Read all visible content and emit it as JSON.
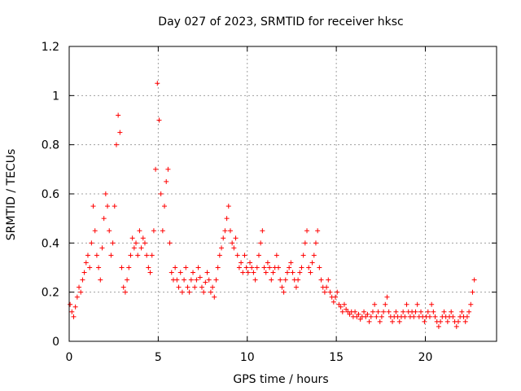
{
  "chart_data": {
    "type": "scatter",
    "title": "Day 027 of 2023, SRMTID for receiver hksc",
    "xlabel": "GPS time / hours",
    "ylabel": "SRMTID / TECUs",
    "xlim": [
      0,
      24
    ],
    "ylim": [
      0,
      1.2
    ],
    "xticks": [
      0,
      5,
      10,
      15,
      20
    ],
    "xtick_labels": [
      "0",
      "5",
      "10",
      "15",
      "20"
    ],
    "yticks": [
      0,
      0.2,
      0.4,
      0.6,
      0.8,
      1.0,
      1.2
    ],
    "ytick_labels": [
      "0",
      "0.2",
      "0.4",
      "0.6",
      "0.8",
      "1",
      "1.2"
    ],
    "grid": true,
    "marker": "+",
    "series": [
      {
        "name": "hksc",
        "color": "#ff0000",
        "x": [
          0.05,
          0.15,
          0.25,
          0.35,
          0.45,
          0.55,
          0.65,
          0.75,
          0.85,
          0.95,
          1.05,
          1.15,
          1.25,
          1.35,
          1.45,
          1.55,
          1.65,
          1.75,
          1.85,
          1.95,
          2.05,
          2.15,
          2.25,
          2.35,
          2.45,
          2.55,
          2.65,
          2.75,
          2.85,
          2.95,
          3.05,
          3.15,
          3.25,
          3.35,
          3.45,
          3.55,
          3.65,
          3.75,
          3.85,
          3.95,
          4.05,
          4.15,
          4.25,
          4.35,
          4.45,
          4.55,
          4.65,
          4.75,
          4.85,
          4.95,
          5.05,
          5.15,
          5.25,
          5.35,
          5.45,
          5.55,
          5.65,
          5.75,
          5.85,
          5.95,
          6.05,
          6.15,
          6.25,
          6.35,
          6.45,
          6.55,
          6.65,
          6.75,
          6.85,
          6.95,
          7.05,
          7.15,
          7.25,
          7.35,
          7.45,
          7.55,
          7.65,
          7.75,
          7.85,
          7.95,
          8.05,
          8.15,
          8.25,
          8.35,
          8.45,
          8.55,
          8.65,
          8.75,
          8.85,
          8.95,
          9.05,
          9.15,
          9.25,
          9.35,
          9.45,
          9.55,
          9.65,
          9.75,
          9.85,
          9.95,
          10.05,
          10.15,
          10.25,
          10.35,
          10.45,
          10.55,
          10.65,
          10.75,
          10.85,
          10.95,
          11.05,
          11.15,
          11.25,
          11.35,
          11.45,
          11.55,
          11.65,
          11.75,
          11.85,
          11.95,
          12.05,
          12.15,
          12.25,
          12.35,
          12.45,
          12.55,
          12.65,
          12.75,
          12.85,
          12.95,
          13.05,
          13.15,
          13.25,
          13.35,
          13.45,
          13.55,
          13.65,
          13.75,
          13.85,
          13.95,
          14.05,
          14.15,
          14.25,
          14.35,
          14.45,
          14.55,
          14.65,
          14.75,
          14.85,
          14.95,
          15.05,
          15.15,
          15.25,
          15.35,
          15.45,
          15.55,
          15.65,
          15.75,
          15.85,
          15.95,
          16.05,
          16.15,
          16.25,
          16.35,
          16.45,
          16.55,
          16.65,
          16.75,
          16.85,
          16.95,
          17.05,
          17.15,
          17.25,
          17.35,
          17.45,
          17.55,
          17.65,
          17.75,
          17.85,
          17.95,
          18.05,
          18.15,
          18.25,
          18.35,
          18.45,
          18.55,
          18.65,
          18.75,
          18.85,
          18.95,
          19.05,
          19.15,
          19.25,
          19.35,
          19.45,
          19.55,
          19.65,
          19.75,
          19.85,
          19.95,
          20.05,
          20.15,
          20.25,
          20.35,
          20.45,
          20.55,
          20.65,
          20.75,
          20.85,
          20.95,
          21.05,
          21.15,
          21.25,
          21.35,
          21.45,
          21.55,
          21.65,
          21.75,
          21.85,
          21.95,
          22.05,
          22.15,
          22.25,
          22.35,
          22.45,
          22.55,
          22.65,
          22.75
        ],
        "y": [
          0.15,
          0.12,
          0.1,
          0.14,
          0.18,
          0.22,
          0.2,
          0.25,
          0.28,
          0.32,
          0.35,
          0.3,
          0.4,
          0.55,
          0.45,
          0.35,
          0.3,
          0.25,
          0.38,
          0.5,
          0.6,
          0.55,
          0.45,
          0.35,
          0.4,
          0.55,
          0.8,
          0.92,
          0.85,
          0.3,
          0.22,
          0.2,
          0.25,
          0.3,
          0.35,
          0.42,
          0.38,
          0.4,
          0.35,
          0.45,
          0.38,
          0.42,
          0.4,
          0.35,
          0.3,
          0.28,
          0.35,
          0.45,
          0.7,
          1.05,
          0.9,
          0.6,
          0.45,
          0.55,
          0.65,
          0.7,
          0.4,
          0.28,
          0.25,
          0.3,
          0.25,
          0.22,
          0.28,
          0.2,
          0.25,
          0.3,
          0.22,
          0.2,
          0.25,
          0.28,
          0.22,
          0.25,
          0.3,
          0.26,
          0.22,
          0.2,
          0.24,
          0.28,
          0.25,
          0.2,
          0.22,
          0.18,
          0.25,
          0.3,
          0.35,
          0.38,
          0.42,
          0.45,
          0.5,
          0.55,
          0.45,
          0.4,
          0.38,
          0.42,
          0.35,
          0.3,
          0.32,
          0.28,
          0.35,
          0.3,
          0.28,
          0.32,
          0.3,
          0.28,
          0.25,
          0.3,
          0.35,
          0.4,
          0.45,
          0.3,
          0.28,
          0.32,
          0.3,
          0.25,
          0.28,
          0.3,
          0.35,
          0.3,
          0.25,
          0.22,
          0.2,
          0.25,
          0.28,
          0.3,
          0.32,
          0.28,
          0.25,
          0.22,
          0.25,
          0.28,
          0.3,
          0.35,
          0.4,
          0.45,
          0.3,
          0.28,
          0.32,
          0.35,
          0.4,
          0.45,
          0.3,
          0.25,
          0.22,
          0.2,
          0.22,
          0.25,
          0.2,
          0.18,
          0.16,
          0.18,
          0.2,
          0.15,
          0.14,
          0.12,
          0.15,
          0.13,
          0.12,
          0.11,
          0.12,
          0.1,
          0.12,
          0.1,
          0.11,
          0.09,
          0.1,
          0.12,
          0.1,
          0.11,
          0.08,
          0.1,
          0.12,
          0.15,
          0.1,
          0.12,
          0.08,
          0.1,
          0.12,
          0.15,
          0.18,
          0.12,
          0.1,
          0.08,
          0.1,
          0.12,
          0.1,
          0.08,
          0.1,
          0.12,
          0.1,
          0.15,
          0.12,
          0.1,
          0.12,
          0.1,
          0.12,
          0.15,
          0.1,
          0.12,
          0.1,
          0.08,
          0.1,
          0.12,
          0.1,
          0.15,
          0.12,
          0.1,
          0.08,
          0.06,
          0.08,
          0.1,
          0.12,
          0.1,
          0.08,
          0.1,
          0.12,
          0.1,
          0.08,
          0.06,
          0.08,
          0.1,
          0.12,
          0.1,
          0.08,
          0.1,
          0.12,
          0.15,
          0.2,
          0.25
        ]
      }
    ]
  }
}
